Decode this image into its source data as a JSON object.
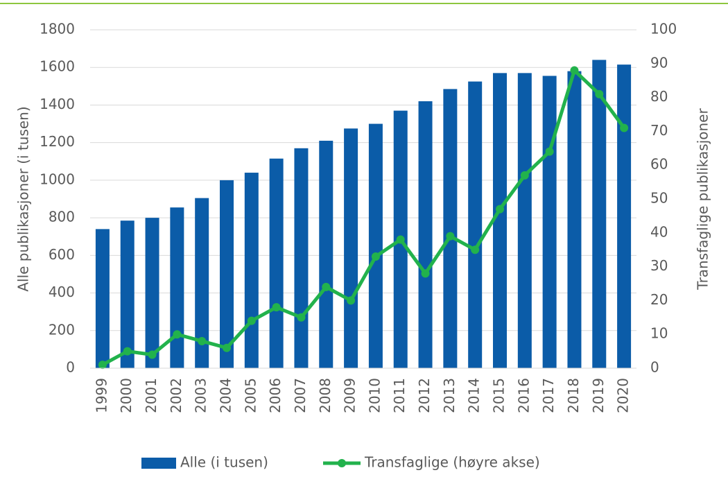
{
  "chart_data": {
    "type": "bar_line",
    "categories": [
      "1999",
      "2000",
      "2001",
      "2002",
      "2003",
      "2004",
      "2005",
      "2006",
      "2007",
      "2008",
      "2009",
      "2010",
      "2011",
      "2012",
      "2013",
      "2014",
      "2015",
      "2016",
      "2017",
      "2018",
      "2019",
      "2020"
    ],
    "series": [
      {
        "name": "Alle (i tusen)",
        "color": "#0b5ca8",
        "type": "bar",
        "axis": "y",
        "values": [
          740,
          785,
          800,
          855,
          905,
          1000,
          1040,
          1115,
          1170,
          1210,
          1275,
          1300,
          1370,
          1420,
          1485,
          1525,
          1570,
          1570,
          1555,
          1580,
          1640,
          1615
        ]
      },
      {
        "name": "Transfaglige (høyre akse)",
        "color": "#22b24c",
        "type": "line",
        "axis": "y2",
        "values": [
          1,
          5,
          4,
          10,
          8,
          6,
          14,
          18,
          15,
          24,
          20,
          33,
          38,
          28,
          39,
          35,
          47,
          57,
          64,
          88,
          81,
          71
        ]
      }
    ],
    "ylabel": "Alle  publikasjoner  (i tusen)",
    "y2label": "Transfaglige  publikasjoner",
    "ylim": [
      0,
      1800
    ],
    "yticks": [
      0,
      200,
      400,
      600,
      800,
      1000,
      1200,
      1400,
      1600,
      1800
    ],
    "y2lim": [
      0,
      100
    ],
    "y2ticks": [
      0,
      10,
      20,
      30,
      40,
      50,
      60,
      70,
      80,
      90,
      100
    ],
    "grid": true
  }
}
